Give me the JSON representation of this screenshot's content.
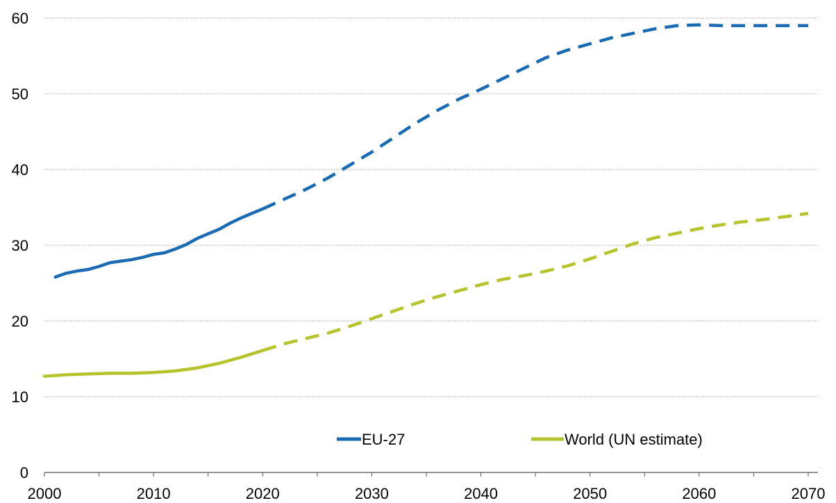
{
  "chart_data": {
    "type": "line",
    "title": "",
    "xlabel": "",
    "ylabel": "",
    "xlim": [
      2000,
      2070
    ],
    "ylim": [
      0,
      60
    ],
    "x_ticks": [
      2000,
      2010,
      2020,
      2030,
      2040,
      2050,
      2060,
      2070
    ],
    "x_tick_labels": [
      "2000",
      "2010",
      "2020",
      "2030",
      "2040",
      "2050",
      "2060",
      "2070"
    ],
    "y_ticks": [
      0,
      10,
      20,
      30,
      40,
      50,
      60
    ],
    "y_tick_labels": [
      "0",
      "10",
      "20",
      "30",
      "40",
      "50",
      "60"
    ],
    "grid": "horizontal dotted",
    "legend_position": "bottom-center",
    "series": [
      {
        "name": "EU-27",
        "color": "#1a6bb3",
        "observed": [
          [
            2001,
            25.8
          ],
          [
            2002,
            26.3
          ],
          [
            2003,
            26.6
          ],
          [
            2004,
            26.8
          ],
          [
            2005,
            27.2
          ],
          [
            2006,
            27.7
          ],
          [
            2007,
            27.9
          ],
          [
            2008,
            28.1
          ],
          [
            2009,
            28.4
          ],
          [
            2010,
            28.8
          ],
          [
            2011,
            29.0
          ],
          [
            2012,
            29.5
          ],
          [
            2013,
            30.1
          ],
          [
            2014,
            30.9
          ],
          [
            2015,
            31.5
          ],
          [
            2016,
            32.1
          ],
          [
            2017,
            32.9
          ],
          [
            2018,
            33.6
          ],
          [
            2019,
            34.2
          ],
          [
            2020,
            34.8
          ]
        ],
        "projected": [
          [
            2020,
            34.8
          ],
          [
            2022,
            36.1
          ],
          [
            2024,
            37.4
          ],
          [
            2026,
            38.9
          ],
          [
            2028,
            40.6
          ],
          [
            2030,
            42.3
          ],
          [
            2032,
            44.2
          ],
          [
            2034,
            46.1
          ],
          [
            2036,
            47.8
          ],
          [
            2038,
            49.3
          ],
          [
            2040,
            50.6
          ],
          [
            2042,
            52.0
          ],
          [
            2044,
            53.4
          ],
          [
            2046,
            54.8
          ],
          [
            2048,
            55.8
          ],
          [
            2050,
            56.6
          ],
          [
            2052,
            57.4
          ],
          [
            2054,
            58.0
          ],
          [
            2056,
            58.6
          ],
          [
            2058,
            59.0
          ],
          [
            2060,
            59.1
          ],
          [
            2062,
            59.0
          ],
          [
            2064,
            59.0
          ],
          [
            2066,
            59.0
          ],
          [
            2068,
            59.0
          ],
          [
            2070,
            59.0
          ]
        ]
      },
      {
        "name": "World (UN estimate)",
        "color": "#b5c42d",
        "observed": [
          [
            2000,
            12.7
          ],
          [
            2002,
            12.9
          ],
          [
            2004,
            13.0
          ],
          [
            2006,
            13.1
          ],
          [
            2008,
            13.1
          ],
          [
            2010,
            13.2
          ],
          [
            2012,
            13.4
          ],
          [
            2014,
            13.8
          ],
          [
            2016,
            14.4
          ],
          [
            2018,
            15.2
          ],
          [
            2020,
            16.1
          ]
        ],
        "projected": [
          [
            2020,
            16.1
          ],
          [
            2022,
            17.0
          ],
          [
            2024,
            17.7
          ],
          [
            2026,
            18.4
          ],
          [
            2028,
            19.3
          ],
          [
            2030,
            20.3
          ],
          [
            2032,
            21.3
          ],
          [
            2034,
            22.3
          ],
          [
            2036,
            23.2
          ],
          [
            2038,
            24.0
          ],
          [
            2040,
            24.8
          ],
          [
            2042,
            25.5
          ],
          [
            2044,
            26.0
          ],
          [
            2046,
            26.6
          ],
          [
            2048,
            27.3
          ],
          [
            2050,
            28.2
          ],
          [
            2052,
            29.2
          ],
          [
            2054,
            30.2
          ],
          [
            2056,
            31.0
          ],
          [
            2058,
            31.6
          ],
          [
            2060,
            32.2
          ],
          [
            2062,
            32.7
          ],
          [
            2064,
            33.1
          ],
          [
            2066,
            33.4
          ],
          [
            2068,
            33.8
          ],
          [
            2070,
            34.2
          ]
        ]
      }
    ]
  }
}
